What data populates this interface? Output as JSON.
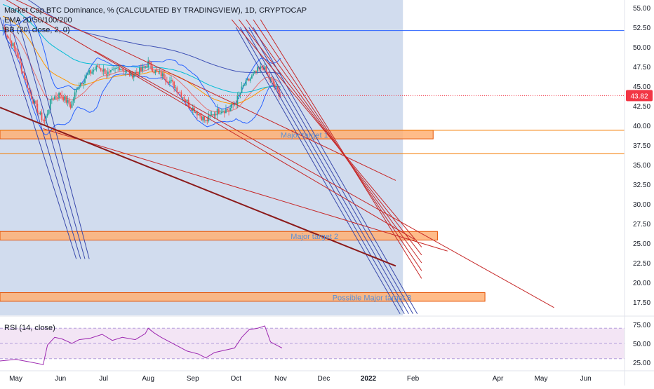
{
  "chart_data": {
    "type": "candlestick",
    "title": "Market Cap BTC Dominance, % (CALCULATED BY TRADINGVIEW), 1D, CRYPTOCAP",
    "indicators": [
      "EMA 20/50/100/200",
      "BB (20, close, 2, 0)"
    ],
    "rsi_label": "RSI (14, close)",
    "last_price": "43.82",
    "colors": {
      "up": "#26a69a",
      "down": "#ef5350",
      "bb": "#2962ff",
      "ema20": "#e57373",
      "ema50": "#ff9800",
      "ema100": "#00bcd4",
      "ema200": "#3f51b5",
      "highlight": "#d1dcee",
      "target_fill": "#ffb074",
      "rsi": "#9c27b0",
      "rsi_band": "#f3e5f5",
      "price_tag": "#f23645"
    },
    "price_axis": {
      "ylim": [
        15.8,
        56.0
      ],
      "ticks": [
        "55.00",
        "52.50",
        "50.00",
        "47.50",
        "45.00",
        "42.50",
        "40.00",
        "37.50",
        "35.00",
        "32.50",
        "30.00",
        "27.50",
        "25.00",
        "22.50",
        "20.00",
        "17.50"
      ]
    },
    "rsi_axis": {
      "ylim": [
        15,
        85
      ],
      "ticks": [
        "75.00",
        "50.00",
        "25.00"
      ],
      "band": [
        30,
        70
      ]
    },
    "time_axis": {
      "start": "2021-04-20",
      "end": "2022-06-28",
      "labels": [
        {
          "text": "May",
          "date": "2021-05-01",
          "bold": false
        },
        {
          "text": "Jun",
          "date": "2021-06-01",
          "bold": false
        },
        {
          "text": "Jul",
          "date": "2021-07-01",
          "bold": false
        },
        {
          "text": "Aug",
          "date": "2021-08-01",
          "bold": false
        },
        {
          "text": "Sep",
          "date": "2021-09-01",
          "bold": false
        },
        {
          "text": "Oct",
          "date": "2021-10-01",
          "bold": false
        },
        {
          "text": "Nov",
          "date": "2021-11-01",
          "bold": false
        },
        {
          "text": "Dec",
          "date": "2021-12-01",
          "bold": false
        },
        {
          "text": "2022",
          "date": "2022-01-01",
          "bold": true
        },
        {
          "text": "Feb",
          "date": "2022-02-01",
          "bold": false
        },
        {
          "text": "Apr",
          "date": "2022-04-01",
          "bold": false
        },
        {
          "text": "May",
          "date": "2022-05-01",
          "bold": false
        },
        {
          "text": "Jun",
          "date": "2022-06-01",
          "bold": false
        }
      ]
    },
    "highlight_range": {
      "x": [
        "2021-04-20",
        "2022-01-25"
      ],
      "y": [
        15.8,
        56.0
      ]
    },
    "series_close": [
      {
        "date": "2021-04-22",
        "value": 52.5
      },
      {
        "date": "2021-05-01",
        "value": 49.5
      },
      {
        "date": "2021-05-10",
        "value": 44.5
      },
      {
        "date": "2021-05-17",
        "value": 41.5
      },
      {
        "date": "2021-05-21",
        "value": 40.5
      },
      {
        "date": "2021-05-26",
        "value": 43.5
      },
      {
        "date": "2021-06-01",
        "value": 44.0
      },
      {
        "date": "2021-06-08",
        "value": 42.5
      },
      {
        "date": "2021-06-13",
        "value": 45.0
      },
      {
        "date": "2021-06-20",
        "value": 46.5
      },
      {
        "date": "2021-06-27",
        "value": 47.5
      },
      {
        "date": "2021-07-05",
        "value": 46.5
      },
      {
        "date": "2021-07-12",
        "value": 47.5
      },
      {
        "date": "2021-07-20",
        "value": 46.5
      },
      {
        "date": "2021-07-27",
        "value": 47.0
      },
      {
        "date": "2021-08-01",
        "value": 48.0
      },
      {
        "date": "2021-08-05",
        "value": 47.0
      },
      {
        "date": "2021-08-10",
        "value": 46.5
      },
      {
        "date": "2021-08-17",
        "value": 45.5
      },
      {
        "date": "2021-08-24",
        "value": 44.0
      },
      {
        "date": "2021-08-30",
        "value": 42.5
      },
      {
        "date": "2021-09-05",
        "value": 41.5
      },
      {
        "date": "2021-09-10",
        "value": 40.5
      },
      {
        "date": "2021-09-15",
        "value": 41.5
      },
      {
        "date": "2021-09-20",
        "value": 42.0
      },
      {
        "date": "2021-09-26",
        "value": 42.0
      },
      {
        "date": "2021-10-01",
        "value": 43.0
      },
      {
        "date": "2021-10-06",
        "value": 45.0
      },
      {
        "date": "2021-10-11",
        "value": 46.0
      },
      {
        "date": "2021-10-16",
        "value": 47.0
      },
      {
        "date": "2021-10-20",
        "value": 47.5
      },
      {
        "date": "2021-10-24",
        "value": 46.0
      },
      {
        "date": "2021-10-28",
        "value": 45.0
      },
      {
        "date": "2021-11-01",
        "value": 43.8
      }
    ],
    "horizontal_lines": [
      {
        "value": 52.1,
        "color": "#2962ff"
      },
      {
        "value": 39.4,
        "color": "#f57c00"
      },
      {
        "value": 36.4,
        "color": "#f57c00"
      }
    ],
    "target_zones": [
      {
        "label": "Major target 1",
        "x": [
          "2021-04-20",
          "2022-02-15"
        ],
        "y": [
          38.3,
          39.4
        ],
        "label_date": "2021-11-01",
        "label_value": 38.8
      },
      {
        "label": "Major target 2",
        "x": [
          "2021-04-20",
          "2022-02-18"
        ],
        "y": [
          25.4,
          26.5
        ],
        "label_date": "2021-11-08",
        "label_value": 25.9
      },
      {
        "label": "Possible Major target 3",
        "x": [
          "2021-04-20",
          "2022-03-23"
        ],
        "y": [
          17.6,
          18.7
        ],
        "label_date": "2021-12-07",
        "label_value": 18.1
      }
    ],
    "rsi_values": [
      {
        "date": "2021-04-20",
        "value": 27
      },
      {
        "date": "2021-05-01",
        "value": 29
      },
      {
        "date": "2021-05-10",
        "value": 26
      },
      {
        "date": "2021-05-18",
        "value": 23
      },
      {
        "date": "2021-05-20",
        "value": 22
      },
      {
        "date": "2021-05-23",
        "value": 48
      },
      {
        "date": "2021-05-28",
        "value": 58
      },
      {
        "date": "2021-06-02",
        "value": 56
      },
      {
        "date": "2021-06-09",
        "value": 50
      },
      {
        "date": "2021-06-14",
        "value": 55
      },
      {
        "date": "2021-06-22",
        "value": 57
      },
      {
        "date": "2021-06-30",
        "value": 62
      },
      {
        "date": "2021-07-07",
        "value": 54
      },
      {
        "date": "2021-07-14",
        "value": 58
      },
      {
        "date": "2021-07-23",
        "value": 55
      },
      {
        "date": "2021-07-30",
        "value": 63
      },
      {
        "date": "2021-08-01",
        "value": 70
      },
      {
        "date": "2021-08-05",
        "value": 64
      },
      {
        "date": "2021-08-10",
        "value": 58
      },
      {
        "date": "2021-08-20",
        "value": 48
      },
      {
        "date": "2021-08-28",
        "value": 40
      },
      {
        "date": "2021-09-05",
        "value": 36
      },
      {
        "date": "2021-09-10",
        "value": 31
      },
      {
        "date": "2021-09-16",
        "value": 38
      },
      {
        "date": "2021-09-23",
        "value": 41
      },
      {
        "date": "2021-09-30",
        "value": 44
      },
      {
        "date": "2021-10-05",
        "value": 58
      },
      {
        "date": "2021-10-10",
        "value": 68
      },
      {
        "date": "2021-10-16",
        "value": 70
      },
      {
        "date": "2021-10-21",
        "value": 73
      },
      {
        "date": "2021-10-25",
        "value": 52
      },
      {
        "date": "2021-10-30",
        "value": 47
      },
      {
        "date": "2021-11-02",
        "value": 44
      }
    ],
    "trend_lines": [
      {
        "x": [
          "2021-04-20",
          "2021-06-12"
        ],
        "y": [
          53.8,
          23.0
        ],
        "color": "#3949ab"
      },
      {
        "x": [
          "2021-04-26",
          "2021-06-15"
        ],
        "y": [
          53.8,
          23.0
        ],
        "color": "#3949ab"
      },
      {
        "x": [
          "2021-05-02",
          "2021-06-18"
        ],
        "y": [
          53.8,
          23.0
        ],
        "color": "#3949ab"
      },
      {
        "x": [
          "2021-05-08",
          "2021-06-21"
        ],
        "y": [
          53.8,
          23.0
        ],
        "color": "#3949ab"
      },
      {
        "x": [
          "2021-10-01",
          "2022-01-23"
        ],
        "y": [
          52.5,
          16.0
        ],
        "color": "#3949ab"
      },
      {
        "x": [
          "2021-10-04",
          "2022-01-26"
        ],
        "y": [
          52.5,
          16.0
        ],
        "color": "#3949ab"
      },
      {
        "x": [
          "2021-10-07",
          "2022-01-29"
        ],
        "y": [
          52.5,
          16.0
        ],
        "color": "#3949ab"
      },
      {
        "x": [
          "2021-10-10",
          "2022-02-01"
        ],
        "y": [
          52.5,
          16.0
        ],
        "color": "#3949ab"
      },
      {
        "x": [
          "2021-10-13",
          "2022-02-04"
        ],
        "y": [
          52.5,
          16.0
        ],
        "color": "#3949ab"
      },
      {
        "x": [
          "2021-09-28",
          "2022-02-07"
        ],
        "y": [
          53.5,
          24.5
        ],
        "color": "#c62828"
      },
      {
        "x": [
          "2021-10-03",
          "2022-02-07"
        ],
        "y": [
          53.5,
          23.5
        ],
        "color": "#c62828"
      },
      {
        "x": [
          "2021-10-08",
          "2022-02-07"
        ],
        "y": [
          53.5,
          22.5
        ],
        "color": "#c62828"
      },
      {
        "x": [
          "2021-10-13",
          "2022-02-07"
        ],
        "y": [
          53.5,
          21.5
        ],
        "color": "#c62828"
      },
      {
        "x": [
          "2021-10-18",
          "2022-02-07"
        ],
        "y": [
          53.5,
          20.5
        ],
        "color": "#c62828"
      },
      {
        "x": [
          "2021-06-25",
          "2022-05-10"
        ],
        "y": [
          49.5,
          16.8
        ],
        "color": "#c62828"
      },
      {
        "x": [
          "2021-05-20",
          "2022-02-25"
        ],
        "y": [
          39.6,
          24.0
        ],
        "color": "#c62828"
      },
      {
        "x": [
          "2021-04-20",
          "2022-02-02"
        ],
        "y": [
          56.5,
          25.5
        ],
        "color": "#c62828"
      },
      {
        "x": [
          "2021-04-20",
          "2022-01-20"
        ],
        "y": [
          42.3,
          22.1
        ],
        "color": "#8b1a1a"
      },
      {
        "x": [
          "2021-04-20",
          "2022-01-20"
        ],
        "y": [
          57.0,
          33.0
        ],
        "color": "#c62828"
      }
    ]
  }
}
